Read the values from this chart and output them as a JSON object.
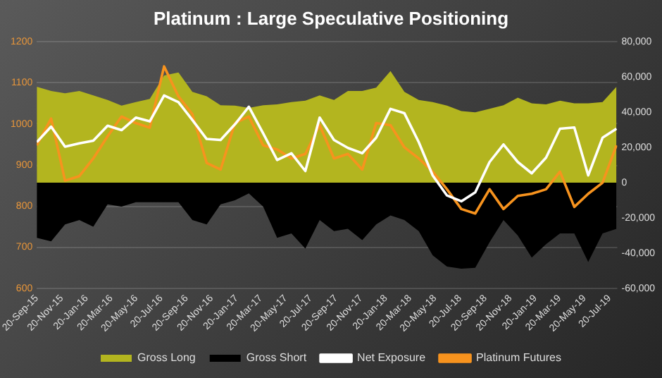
{
  "chart_data": {
    "type": "line",
    "title": "Platinum : Large Speculative Positioning",
    "x": [
      "2015-09-20",
      "2015-10-25",
      "2015-11-28",
      "2016-01-02",
      "2016-02-05",
      "2016-03-11",
      "2016-04-14",
      "2016-05-19",
      "2016-06-22",
      "2016-07-27",
      "2016-08-31",
      "2016-10-04",
      "2016-11-08",
      "2016-12-12",
      "2017-01-16",
      "2017-02-19",
      "2017-03-26",
      "2017-04-29",
      "2017-06-03",
      "2017-07-07",
      "2017-08-11",
      "2017-09-15",
      "2017-10-19",
      "2017-11-23",
      "2017-12-27",
      "2018-01-31",
      "2018-03-06",
      "2018-04-10",
      "2018-05-14",
      "2018-06-18",
      "2018-07-23",
      "2018-08-26",
      "2018-09-30",
      "2018-11-03",
      "2018-12-08",
      "2019-01-11",
      "2019-02-15",
      "2019-03-21",
      "2019-04-25",
      "2019-05-29",
      "2019-07-03",
      "2019-08-06"
    ],
    "series": [
      {
        "name": "Gross Long",
        "type": "area",
        "axis": "y2",
        "color": "#b3b51f",
        "values": [
          54500,
          52000,
          50700,
          52000,
          49500,
          46900,
          43700,
          45700,
          47500,
          60900,
          62600,
          51500,
          49000,
          43900,
          43700,
          42400,
          43900,
          44400,
          45700,
          46500,
          49500,
          46900,
          52000,
          52000,
          54000,
          63400,
          51500,
          46900,
          45700,
          43700,
          40600,
          39900,
          41900,
          43900,
          48200,
          45000,
          44400,
          46500,
          45000,
          45000,
          45700,
          54500
        ]
      },
      {
        "name": "Gross Short",
        "type": "area",
        "axis": "y2",
        "color": "#000000",
        "values": [
          -31300,
          -33300,
          -23700,
          -21200,
          -25000,
          -12300,
          -13600,
          -11100,
          -11100,
          -11100,
          -11100,
          -21200,
          -23700,
          -12300,
          -10000,
          -6100,
          -13600,
          -31300,
          -28800,
          -37500,
          -21200,
          -27500,
          -26200,
          -32600,
          -23700,
          -18600,
          -21200,
          -27500,
          -41300,
          -47700,
          -48900,
          -48400,
          -33800,
          -21200,
          -30000,
          -42600,
          -35000,
          -28800,
          -28800,
          -45100,
          -28800,
          -26200
        ]
      },
      {
        "name": "Net Exposure",
        "type": "line",
        "axis": "y2",
        "color": "#ffffff",
        "values": [
          23000,
          31800,
          20400,
          22300,
          23800,
          32300,
          29800,
          36900,
          34800,
          49500,
          45700,
          35600,
          24800,
          24200,
          33100,
          43100,
          28000,
          12900,
          16700,
          6600,
          36900,
          24200,
          19700,
          16700,
          25500,
          41900,
          39400,
          23000,
          4100,
          -7300,
          -10600,
          -5500,
          11700,
          21700,
          11700,
          5300,
          14200,
          30600,
          31300,
          4100,
          25500,
          30600
        ]
      },
      {
        "name": "Platinum Futures",
        "type": "line",
        "color": "#f7931e",
        "values": [
          948,
          1013,
          862,
          873,
          916,
          970,
          1018,
          1002,
          991,
          1140,
          1067,
          1024,
          905,
          889,
          1002,
          1018,
          948,
          938,
          916,
          927,
          997,
          916,
          927,
          889,
          1002,
          997,
          943,
          916,
          884,
          841,
          793,
          782,
          841,
          793,
          825,
          830,
          841,
          884,
          798,
          830,
          857,
          948
        ]
      }
    ],
    "xlim": [
      "2015-09-20",
      "2019-08-08"
    ],
    "xticks": [
      {
        "value": "2015-09-20",
        "label": "20-Sep-15"
      },
      {
        "value": "2015-11-20",
        "label": "20-Nov-15"
      },
      {
        "value": "2016-01-20",
        "label": "20-Jan-16"
      },
      {
        "value": "2016-03-20",
        "label": "20-Mar-16"
      },
      {
        "value": "2016-05-20",
        "label": "20-May-16"
      },
      {
        "value": "2016-07-20",
        "label": "20-Jul-16"
      },
      {
        "value": "2016-09-20",
        "label": "20-Sep-16"
      },
      {
        "value": "2016-11-20",
        "label": "20-Nov-16"
      },
      {
        "value": "2017-01-20",
        "label": "20-Jan-17"
      },
      {
        "value": "2017-03-20",
        "label": "20-Mar-17"
      },
      {
        "value": "2017-05-20",
        "label": "20-May-17"
      },
      {
        "value": "2017-07-20",
        "label": "20-Jul-17"
      },
      {
        "value": "2017-09-20",
        "label": "20-Sep-17"
      },
      {
        "value": "2017-11-20",
        "label": "20-Nov-17"
      },
      {
        "value": "2018-01-20",
        "label": "20-Jan-18"
      },
      {
        "value": "2018-03-20",
        "label": "20-Mar-18"
      },
      {
        "value": "2018-05-20",
        "label": "20-May-18"
      },
      {
        "value": "2018-07-20",
        "label": "20-Jul-18"
      },
      {
        "value": "2018-09-20",
        "label": "20-Sep-18"
      },
      {
        "value": "2018-11-20",
        "label": "20-Nov-18"
      },
      {
        "value": "2019-01-20",
        "label": "20-Jan-19"
      },
      {
        "value": "2019-03-20",
        "label": "20-Mar-19"
      },
      {
        "value": "2019-05-20",
        "label": "20-May-19"
      },
      {
        "value": "2019-07-20",
        "label": "20-Jul-19"
      }
    ],
    "ylim": [
      600,
      1200
    ],
    "yticks": [
      600,
      700,
      800,
      900,
      1000,
      1100,
      1200
    ],
    "y2lim": [
      -60000,
      80000
    ],
    "y2ticks": [
      {
        "value": -60000,
        "label": "-60,000"
      },
      {
        "value": -40000,
        "label": "-40,000"
      },
      {
        "value": -20000,
        "label": "-20,000"
      },
      0,
      {
        "value": 20000,
        "label": "20,000"
      },
      {
        "value": 40000,
        "label": "40,000"
      },
      {
        "value": 60000,
        "label": "60,000"
      },
      {
        "value": 80000,
        "label": "80,000"
      }
    ],
    "grid": "y",
    "legend": "bottom",
    "marker": "none"
  }
}
